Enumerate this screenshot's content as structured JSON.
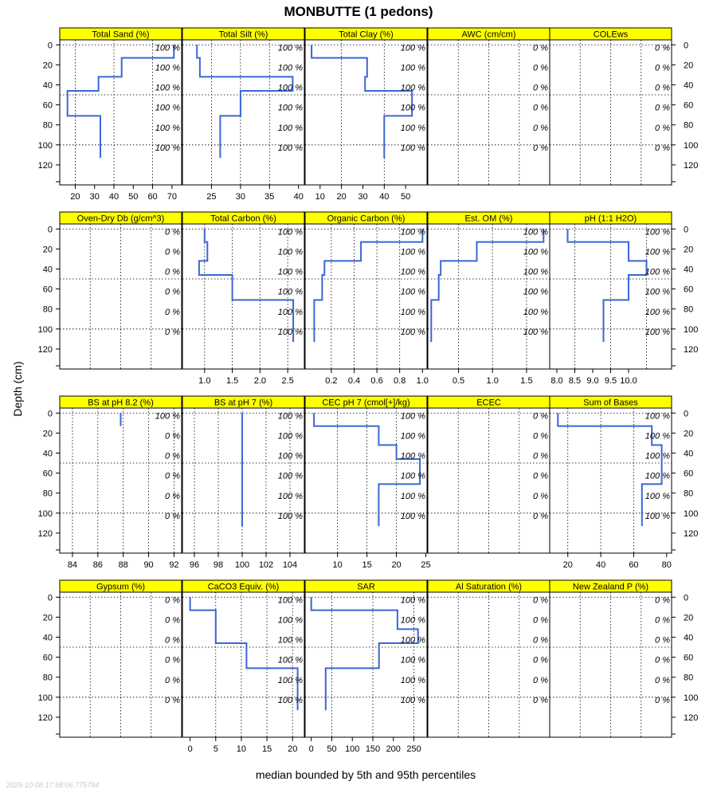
{
  "title": "MONBUTTE (1 pedons)",
  "xlabel": "median bounded by 5th and 95th percentiles",
  "ylabel": "Depth (cm)",
  "timestamp": "2025-10-08 17:58:06.775784",
  "colors": {
    "strip": "#ffff00",
    "line": "#3a66d6",
    "grid": "#000000",
    "frame": "#000000",
    "pct_text": "#000000"
  },
  "chart_data": {
    "type": "line",
    "depth_axis": {
      "label": "Depth (cm)",
      "ticks": [
        0,
        20,
        40,
        60,
        80,
        100,
        120
      ],
      "range": [
        -5,
        140
      ],
      "reversed": true
    },
    "percent_label_depths": [
      2.5,
      22.5,
      42.5,
      62.5,
      82.5,
      102.5
    ],
    "panels": [
      {
        "name": "Total Sand (%)",
        "row": 0,
        "xlim": [
          12,
          75
        ],
        "xticks": [
          20,
          30,
          40,
          50,
          60,
          70
        ],
        "xgrid": [
          20,
          40,
          60
        ],
        "x": [
          71,
          71,
          44,
          44,
          32,
          32,
          16,
          16,
          33,
          33
        ],
        "depth": [
          0,
          13,
          13,
          32,
          32,
          46,
          46,
          71,
          71,
          113
        ],
        "pct": [
          "100 %",
          "100 %",
          "100 %",
          "100 %",
          "100 %",
          "100 %"
        ]
      },
      {
        "name": "Total Silt (%)",
        "row": 0,
        "xlim": [
          20,
          41
        ],
        "xticks": [
          25,
          30,
          35,
          40
        ],
        "xgrid": [
          25,
          30,
          35
        ],
        "x": [
          22.5,
          22.5,
          23,
          23,
          39,
          39,
          30,
          30,
          26.5,
          26.5
        ],
        "depth": [
          0,
          13,
          13,
          32,
          32,
          46,
          46,
          71,
          71,
          113
        ],
        "pct": [
          "100 %",
          "100 %",
          "100 %",
          "100 %",
          "100 %",
          "100 %"
        ]
      },
      {
        "name": "Total Clay (%)",
        "row": 0,
        "xlim": [
          3,
          60
        ],
        "xticks": [
          10,
          20,
          30,
          40,
          50
        ],
        "xgrid": [
          20,
          40
        ],
        "x": [
          6,
          6,
          32,
          32,
          31,
          31,
          53,
          53,
          40,
          40
        ],
        "depth": [
          0,
          13,
          13,
          32,
          32,
          46,
          46,
          71,
          71,
          113
        ],
        "pct": [
          "100 %",
          "100 %",
          "100 %",
          "100 %",
          "100 %",
          "100 %"
        ]
      },
      {
        "name": "AWC (cm/cm)",
        "row": 0,
        "xlim": [
          0,
          1
        ],
        "xticks": [],
        "xgrid": [
          0.25,
          0.5,
          0.75
        ],
        "x": [],
        "depth": [],
        "pct": [
          "0 %",
          "0 %",
          "0 %",
          "0 %",
          "0 %",
          "0 %"
        ]
      },
      {
        "name": "COLEws",
        "row": 0,
        "xlim": [
          0,
          1
        ],
        "xticks": [],
        "xgrid": [
          0.25,
          0.5,
          0.75
        ],
        "x": [],
        "depth": [],
        "pct": [
          "0 %",
          "0 %",
          "0 %",
          "0 %",
          "0 %",
          "0 %"
        ]
      },
      {
        "name": "Oven-Dry Db (g/cm^3)",
        "row": 1,
        "xlim": [
          0,
          1
        ],
        "xticks": [],
        "xgrid": [
          0.25,
          0.5,
          0.75
        ],
        "x": [],
        "depth": [],
        "pct": [
          "0 %",
          "0 %",
          "0 %",
          "0 %",
          "0 %",
          "0 %"
        ]
      },
      {
        "name": "Total Carbon (%)",
        "row": 1,
        "xlim": [
          0.6,
          2.8
        ],
        "xticks": [
          1.0,
          1.5,
          2.0,
          2.5
        ],
        "xgrid": [
          1.0,
          1.5,
          2.0,
          2.5
        ],
        "x": [
          1.0,
          1.0,
          1.05,
          1.05,
          0.9,
          0.9,
          1.5,
          1.5,
          2.6,
          2.6
        ],
        "depth": [
          0,
          13,
          13,
          32,
          32,
          46,
          46,
          71,
          71,
          113
        ],
        "pct": [
          "100 %",
          "100 %",
          "100 %",
          "100 %",
          "100 %",
          "100 %"
        ]
      },
      {
        "name": "Organic Carbon (%)",
        "row": 1,
        "xlim": [
          -0.03,
          1.04
        ],
        "xticks": [
          0.2,
          0.4,
          0.6,
          0.8,
          1.0
        ],
        "xgrid": [
          0.2,
          0.4,
          0.6,
          0.8
        ],
        "x": [
          1.0,
          1.0,
          0.46,
          0.46,
          0.14,
          0.14,
          0.12,
          0.12,
          0.05,
          0.05
        ],
        "depth": [
          0,
          13,
          13,
          32,
          32,
          46,
          46,
          71,
          71,
          113
        ],
        "pct": [
          "100 %",
          "100 %",
          "100 %",
          "100 %",
          "100 %",
          "100 %"
        ]
      },
      {
        "name": "Est. OM (%)",
        "row": 1,
        "xlim": [
          0.05,
          1.84
        ],
        "xticks": [
          0.5,
          1.0,
          1.5
        ],
        "xgrid": [
          0.5,
          1.0,
          1.5
        ],
        "x": [
          1.75,
          1.75,
          0.77,
          0.77,
          0.24,
          0.24,
          0.21,
          0.21,
          0.1,
          0.1
        ],
        "depth": [
          0,
          13,
          13,
          32,
          32,
          46,
          46,
          71,
          71,
          113
        ],
        "pct": [
          "100 %",
          "100 %",
          "100 %",
          "100 %",
          "100 %",
          "100 %"
        ]
      },
      {
        "name": "pH (1:1 H2O)",
        "row": 1,
        "xlim": [
          7.8,
          11.2
        ],
        "xticks": [
          8.0,
          8.5,
          9.0,
          9.5,
          10.0
        ],
        "xgrid": [
          8.5,
          9.5,
          10.5
        ],
        "x": [
          8.3,
          8.3,
          10.0,
          10.0,
          10.5,
          10.5,
          10.0,
          10.0,
          9.3,
          9.3
        ],
        "depth": [
          0,
          13,
          13,
          32,
          32,
          46,
          46,
          71,
          71,
          113
        ],
        "pct": [
          "100 %",
          "100 %",
          "100 %",
          "100 %",
          "100 %",
          "100 %"
        ]
      },
      {
        "name": "BS at pH 8.2 (%)",
        "row": 2,
        "xlim": [
          83,
          92.6
        ],
        "xticks": [
          84,
          86,
          88,
          90,
          92
        ],
        "xgrid": [
          84,
          86,
          88,
          90,
          92
        ],
        "x": [
          87.8,
          87.8
        ],
        "depth": [
          0,
          13
        ],
        "pct": [
          "100 %",
          "0 %",
          "0 %",
          "0 %",
          "0 %",
          "0 %"
        ]
      },
      {
        "name": "BS at pH 7 (%)",
        "row": 2,
        "xlim": [
          95,
          105.2
        ],
        "xticks": [
          96,
          98,
          100,
          102,
          104
        ],
        "xgrid": [
          96,
          98,
          100,
          102,
          104
        ],
        "x": [
          100,
          100
        ],
        "depth": [
          0,
          113
        ],
        "pct": [
          "100 %",
          "100 %",
          "100 %",
          "100 %",
          "100 %",
          "100 %"
        ]
      },
      {
        "name": "CEC pH 7 (cmol[+]/kg)",
        "row": 2,
        "xlim": [
          4.5,
          25.2
        ],
        "xticks": [
          10,
          15,
          20,
          25
        ],
        "xgrid": [
          10,
          15,
          20
        ],
        "x": [
          6,
          6,
          17,
          17,
          20,
          20,
          24,
          24,
          17,
          17
        ],
        "depth": [
          0,
          13,
          13,
          32,
          32,
          46,
          46,
          71,
          71,
          113
        ],
        "pct": [
          "100 %",
          "100 %",
          "100 %",
          "100 %",
          "100 %",
          "100 %"
        ]
      },
      {
        "name": "ECEC",
        "row": 2,
        "xlim": [
          0,
          1
        ],
        "xticks": [],
        "xgrid": [
          0.25,
          0.5,
          0.75
        ],
        "x": [],
        "depth": [],
        "pct": [
          "0 %",
          "0 %",
          "0 %",
          "0 %",
          "0 %",
          "0 %"
        ]
      },
      {
        "name": "Sum of Bases",
        "row": 2,
        "xlim": [
          9,
          83
        ],
        "xticks": [
          20,
          40,
          60,
          80
        ],
        "xgrid": [
          20,
          40,
          60
        ],
        "x": [
          14,
          14,
          71,
          71,
          77,
          77,
          65,
          65,
          65
        ],
        "depth": [
          0,
          13,
          13,
          32,
          32,
          71,
          71,
          100,
          113
        ],
        "pct": [
          "100 %",
          "100 %",
          "100 %",
          "100 %",
          "100 %",
          "100 %"
        ]
      },
      {
        "name": "Gypsum (%)",
        "row": 3,
        "xlim": [
          0,
          1
        ],
        "xticks": [],
        "xgrid": [
          0.25,
          0.5,
          0.75
        ],
        "x": [],
        "depth": [],
        "pct": [
          "0 %",
          "0 %",
          "0 %",
          "0 %",
          "0 %",
          "0 %"
        ]
      },
      {
        "name": "CaCO3 Equiv. (%)",
        "row": 3,
        "xlim": [
          -1.5,
          22.3
        ],
        "xticks": [
          0,
          5,
          10,
          15,
          20
        ],
        "xgrid": [
          5,
          10,
          15,
          20
        ],
        "x": [
          0,
          0,
          5,
          5,
          11,
          11,
          21,
          21
        ],
        "depth": [
          0,
          13,
          13,
          46,
          46,
          71,
          71,
          113
        ],
        "pct": [
          "100 %",
          "100 %",
          "100 %",
          "100 %",
          "100 %",
          "100 %"
        ]
      },
      {
        "name": "SAR",
        "row": 3,
        "xlim": [
          -15,
          282
        ],
        "xticks": [
          0,
          50,
          100,
          150,
          200,
          250
        ],
        "xgrid": [
          50,
          150,
          250
        ],
        "x": [
          0,
          0,
          210,
          210,
          260,
          260,
          165,
          165,
          35,
          35
        ],
        "depth": [
          0,
          13,
          13,
          32,
          32,
          46,
          46,
          71,
          71,
          113
        ],
        "pct": [
          "100 %",
          "100 %",
          "100 %",
          "100 %",
          "100 %",
          "100 %"
        ]
      },
      {
        "name": "Al Saturation (%)",
        "row": 3,
        "xlim": [
          0,
          1
        ],
        "xticks": [],
        "xgrid": [
          0.25,
          0.5,
          0.75
        ],
        "x": [],
        "depth": [],
        "pct": [
          "0 %",
          "0 %",
          "0 %",
          "0 %",
          "0 %",
          "0 %"
        ]
      },
      {
        "name": "New Zealand P (%)",
        "row": 3,
        "xlim": [
          0,
          1
        ],
        "xticks": [],
        "xgrid": [
          0.25,
          0.5,
          0.75
        ],
        "x": [],
        "depth": [],
        "pct": [
          "0 %",
          "0 %",
          "0 %",
          "0 %",
          "0 %",
          "0 %"
        ]
      }
    ]
  }
}
